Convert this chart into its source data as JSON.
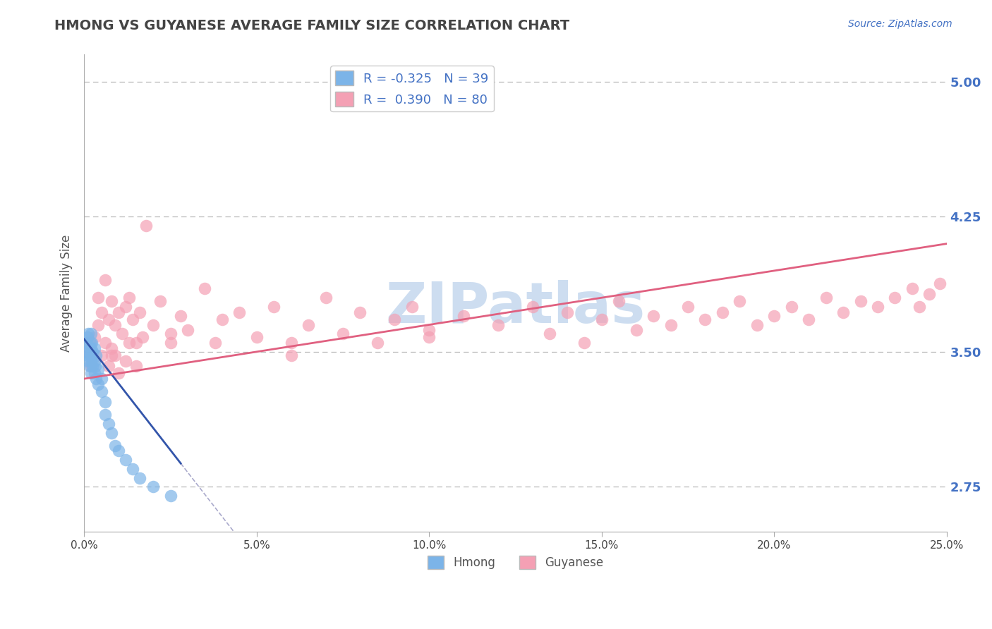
{
  "title": "HMONG VS GUYANESE AVERAGE FAMILY SIZE CORRELATION CHART",
  "source_text": "Source: ZipAtlas.com",
  "ylabel": "Average Family Size",
  "xlim": [
    0.0,
    0.25
  ],
  "ylim": [
    2.5,
    5.15
  ],
  "yticks": [
    2.75,
    3.5,
    4.25,
    5.0
  ],
  "xtick_labels": [
    "0.0%",
    "5.0%",
    "10.0%",
    "15.0%",
    "20.0%",
    "25.0%"
  ],
  "xtick_vals": [
    0.0,
    0.05,
    0.1,
    0.15,
    0.2,
    0.25
  ],
  "hmong_R": -0.325,
  "hmong_N": 39,
  "guyanese_R": 0.39,
  "guyanese_N": 80,
  "hmong_color": "#7cb4e8",
  "guyanese_color": "#f4a0b4",
  "hmong_line_color": "#3355aa",
  "guyanese_line_color": "#e06080",
  "background_color": "#ffffff",
  "grid_color": "#b8b8b8",
  "title_color": "#444444",
  "source_color": "#4472c4",
  "legend_text_color": "#4472c4",
  "watermark_color": "#c5d8ee",
  "hmong_x": [
    0.0005,
    0.0008,
    0.001,
    0.001,
    0.0012,
    0.0012,
    0.0015,
    0.0015,
    0.0018,
    0.0018,
    0.002,
    0.002,
    0.002,
    0.002,
    0.0022,
    0.0022,
    0.0025,
    0.0025,
    0.003,
    0.003,
    0.003,
    0.0032,
    0.0035,
    0.0035,
    0.004,
    0.004,
    0.005,
    0.005,
    0.006,
    0.006,
    0.007,
    0.008,
    0.009,
    0.01,
    0.012,
    0.014,
    0.016,
    0.02,
    0.025
  ],
  "hmong_y": [
    3.5,
    3.55,
    3.58,
    3.48,
    3.6,
    3.45,
    3.52,
    3.42,
    3.55,
    3.48,
    3.6,
    3.52,
    3.45,
    3.38,
    3.55,
    3.48,
    3.5,
    3.42,
    3.52,
    3.45,
    3.38,
    3.42,
    3.48,
    3.35,
    3.4,
    3.32,
    3.35,
    3.28,
    3.22,
    3.15,
    3.1,
    3.05,
    2.98,
    2.95,
    2.9,
    2.85,
    2.8,
    2.75,
    2.7
  ],
  "guyanese_x": [
    0.001,
    0.002,
    0.003,
    0.004,
    0.004,
    0.005,
    0.005,
    0.006,
    0.006,
    0.007,
    0.007,
    0.008,
    0.008,
    0.009,
    0.009,
    0.01,
    0.01,
    0.011,
    0.012,
    0.012,
    0.013,
    0.013,
    0.014,
    0.015,
    0.016,
    0.017,
    0.018,
    0.02,
    0.022,
    0.025,
    0.028,
    0.03,
    0.035,
    0.038,
    0.04,
    0.045,
    0.05,
    0.055,
    0.06,
    0.065,
    0.07,
    0.075,
    0.08,
    0.085,
    0.09,
    0.095,
    0.1,
    0.11,
    0.12,
    0.13,
    0.135,
    0.14,
    0.145,
    0.15,
    0.155,
    0.16,
    0.165,
    0.17,
    0.175,
    0.18,
    0.185,
    0.19,
    0.195,
    0.2,
    0.205,
    0.21,
    0.215,
    0.22,
    0.225,
    0.23,
    0.235,
    0.24,
    0.242,
    0.245,
    0.248,
    0.008,
    0.015,
    0.025,
    0.06,
    0.1
  ],
  "guyanese_y": [
    3.5,
    3.42,
    3.58,
    3.65,
    3.8,
    3.72,
    3.48,
    3.9,
    3.55,
    3.68,
    3.42,
    3.78,
    3.52,
    3.65,
    3.48,
    3.72,
    3.38,
    3.6,
    3.75,
    3.45,
    3.8,
    3.55,
    3.68,
    3.42,
    3.72,
    3.58,
    4.2,
    3.65,
    3.78,
    3.55,
    3.7,
    3.62,
    3.85,
    3.55,
    3.68,
    3.72,
    3.58,
    3.75,
    3.48,
    3.65,
    3.8,
    3.6,
    3.72,
    3.55,
    3.68,
    3.75,
    3.62,
    3.7,
    3.65,
    3.75,
    3.6,
    3.72,
    3.55,
    3.68,
    3.78,
    3.62,
    3.7,
    3.65,
    3.75,
    3.68,
    3.72,
    3.78,
    3.65,
    3.7,
    3.75,
    3.68,
    3.8,
    3.72,
    3.78,
    3.75,
    3.8,
    3.85,
    3.75,
    3.82,
    3.88,
    3.48,
    3.55,
    3.6,
    3.55,
    3.58
  ]
}
